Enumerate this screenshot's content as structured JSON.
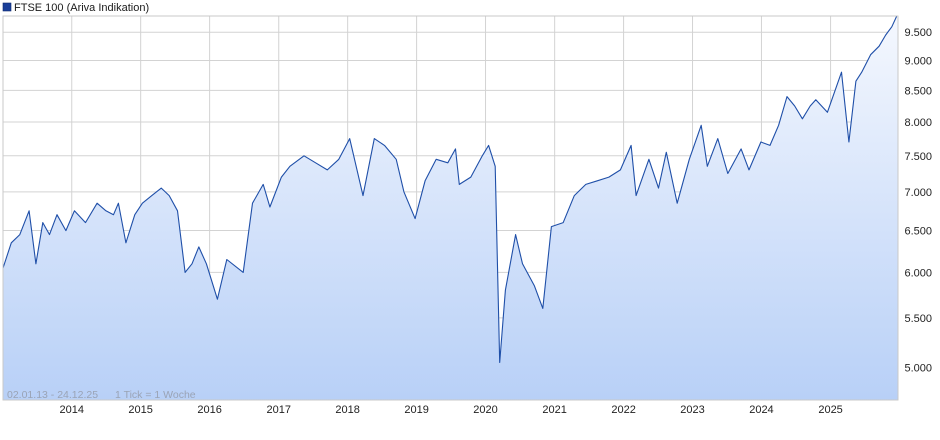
{
  "legend": {
    "label": "FTSE 100 (Ariva Indikation)",
    "swatch_color": "#1a3e99"
  },
  "footer": {
    "range": "02.01.13 - 24.12.25",
    "tick_info": "1 Tick = 1 Woche"
  },
  "colors": {
    "line": "#1f4fa8",
    "fill_top": "#f5f8fe",
    "fill_bottom": "#b8d0f7",
    "grid": "#d3d3d3"
  },
  "chart_data": {
    "type": "area",
    "title": "FTSE 100 (Ariva Indikation)",
    "xlabel": "",
    "ylabel": "",
    "ylim": [
      4700,
      9800
    ],
    "xlim": [
      "2013-01-02",
      "2025-12-24"
    ],
    "scale": "log",
    "grid": true,
    "legend_position": "top-left",
    "y_ticks": [
      5000,
      5500,
      6000,
      6500,
      7000,
      7500,
      8000,
      8500,
      9000,
      9500
    ],
    "y_tick_labels": [
      "5.000",
      "5.500",
      "6.000",
      "6.500",
      "7.000",
      "7.500",
      "8.000",
      "8.500",
      "9.000",
      "9.500"
    ],
    "x_ticks": [
      "2014-01-01",
      "2015-01-01",
      "2016-01-01",
      "2017-01-01",
      "2018-01-01",
      "2019-01-01",
      "2020-01-01",
      "2021-01-01",
      "2022-01-01",
      "2023-01-01",
      "2024-01-01",
      "2025-01-01"
    ],
    "x_tick_labels": [
      "2014",
      "2015",
      "2016",
      "2017",
      "2018",
      "2019",
      "2020",
      "2021",
      "2022",
      "2023",
      "2024",
      "2025"
    ],
    "series": [
      {
        "x": [
          "2013-01-02",
          "2013-02-15",
          "2013-04-01",
          "2013-05-20",
          "2013-06-25",
          "2013-08-01",
          "2013-09-05",
          "2013-10-15",
          "2013-12-01",
          "2014-01-15",
          "2014-03-15",
          "2014-05-15",
          "2014-07-01",
          "2014-08-10",
          "2014-09-05",
          "2014-10-15",
          "2014-12-01",
          "2015-01-10",
          "2015-03-01",
          "2015-04-20",
          "2015-06-01",
          "2015-07-15",
          "2015-08-24",
          "2015-09-30",
          "2015-11-05",
          "2015-12-15",
          "2016-02-11",
          "2016-04-01",
          "2016-06-27",
          "2016-08-15",
          "2016-10-11",
          "2016-11-15",
          "2017-01-15",
          "2017-03-01",
          "2017-05-15",
          "2017-07-15",
          "2017-09-15",
          "2017-11-15",
          "2018-01-12",
          "2018-03-23",
          "2018-05-22",
          "2018-07-15",
          "2018-09-15",
          "2018-10-26",
          "2018-12-24",
          "2019-02-15",
          "2019-04-15",
          "2019-06-15",
          "2019-07-26",
          "2019-08-15",
          "2019-10-15",
          "2019-12-15",
          "2020-01-17",
          "2020-02-21",
          "2020-03-16",
          "2020-04-15",
          "2020-06-08",
          "2020-07-15",
          "2020-09-15",
          "2020-10-30",
          "2020-12-15",
          "2021-02-15",
          "2021-04-15",
          "2021-06-15",
          "2021-08-15",
          "2021-10-15",
          "2021-12-15",
          "2022-02-10",
          "2022-03-08",
          "2022-05-15",
          "2022-07-05",
          "2022-08-15",
          "2022-10-12",
          "2022-12-15",
          "2023-02-16",
          "2023-03-20",
          "2023-05-15",
          "2023-07-07",
          "2023-09-15",
          "2023-10-27",
          "2023-12-29",
          "2024-02-15",
          "2024-04-01",
          "2024-05-15",
          "2024-06-25",
          "2024-08-05",
          "2024-09-15",
          "2024-10-15",
          "2024-12-15",
          "2025-02-28",
          "2025-04-08",
          "2025-05-15",
          "2025-06-15",
          "2025-08-01",
          "2025-09-15",
          "2025-10-20",
          "2025-11-21",
          "2025-12-24"
        ],
        "values": [
          6050,
          6350,
          6450,
          6750,
          6100,
          6600,
          6450,
          6700,
          6500,
          6750,
          6600,
          6850,
          6750,
          6700,
          6850,
          6350,
          6700,
          6850,
          6950,
          7050,
          6950,
          6750,
          6000,
          6100,
          6300,
          6100,
          5700,
          6150,
          6000,
          6850,
          7100,
          6800,
          7200,
          7350,
          7500,
          7400,
          7300,
          7450,
          7750,
          6950,
          7750,
          7650,
          7450,
          7000,
          6650,
          7150,
          7450,
          7400,
          7600,
          7100,
          7200,
          7500,
          7650,
          7350,
          5050,
          5800,
          6450,
          6100,
          5850,
          5600,
          6550,
          6600,
          6950,
          7100,
          7150,
          7200,
          7300,
          7650,
          6950,
          7450,
          7050,
          7550,
          6850,
          7450,
          7950,
          7350,
          7750,
          7250,
          7600,
          7300,
          7700,
          7650,
          7950,
          8400,
          8250,
          8050,
          8250,
          8350,
          8150,
          8800,
          7700,
          8650,
          8800,
          9100,
          9250,
          9450,
          9600,
          9850
        ]
      }
    ]
  }
}
